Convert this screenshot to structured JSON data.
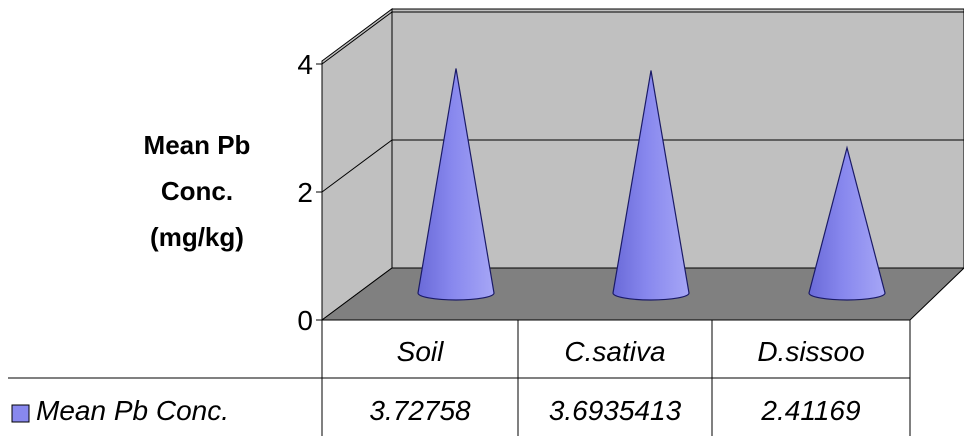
{
  "chart_data": {
    "type": "cone-3d-column",
    "categories": [
      "Soil",
      "C.sativa",
      "D.sissoo"
    ],
    "series": [
      {
        "name": "Mean Pb Conc.",
        "values": [
          3.72758,
          3.6935413,
          2.41169
        ],
        "color": "#8888ee"
      }
    ],
    "value_labels": [
      "3.72758",
      "3.6935413",
      "2.41169"
    ],
    "ylabel_lines": [
      "Mean Pb",
      "Conc.",
      "(mg/kg)"
    ],
    "yticks": [
      0,
      2,
      4
    ],
    "ylim": [
      0,
      4
    ],
    "grid": true,
    "legend_placement": "data-table",
    "colors": {
      "wall": "#c0c0c0",
      "floor": "#808080",
      "cone": "#8888ee",
      "cone_edge": "#1a1a66"
    }
  }
}
